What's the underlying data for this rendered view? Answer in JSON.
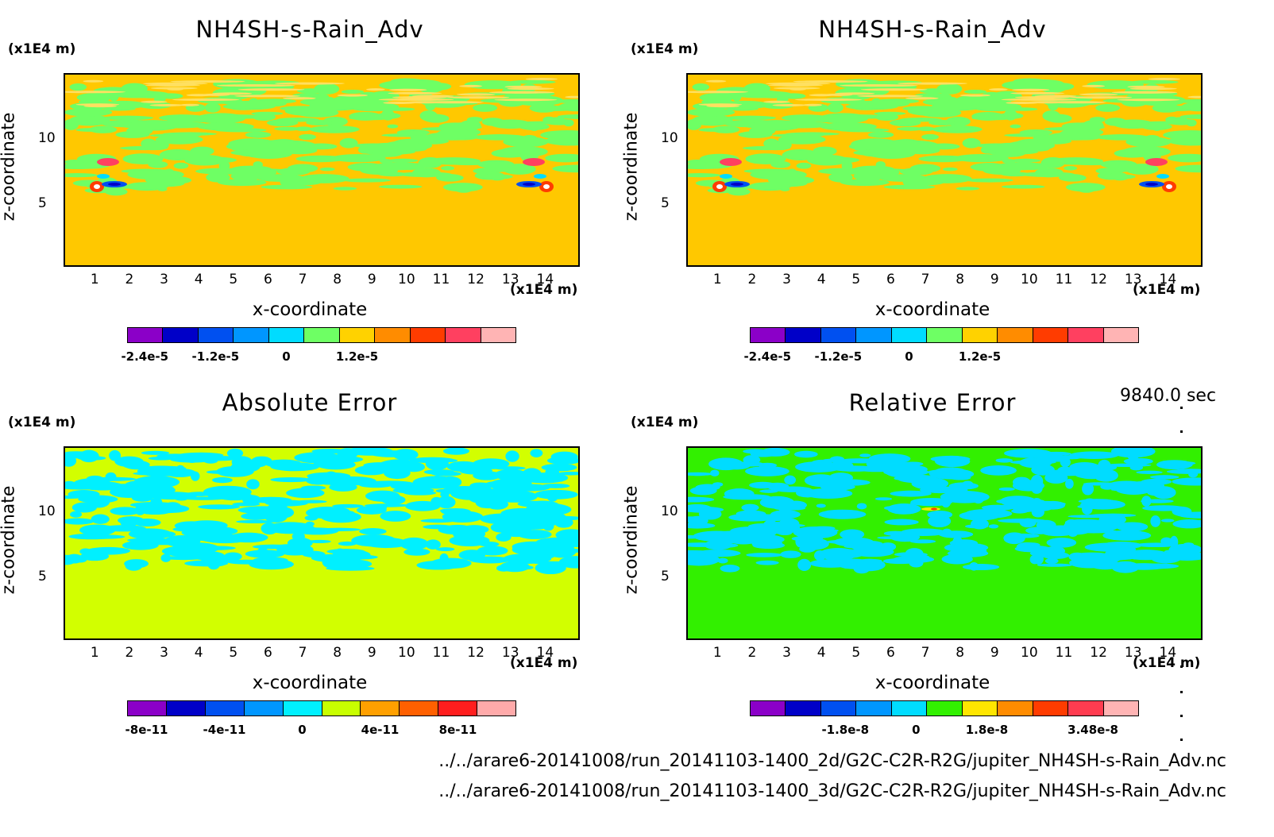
{
  "time_label": "9840.0 sec",
  "files": [
    "../../arare6-20141008/run_20141103-1400_2d/G2C-C2R-R2G/jupiter_NH4SH-s-Rain_Adv.nc",
    "../../arare6-20141008/run_20141103-1400_3d/G2C-C2R-R2G/jupiter_NH4SH-s-Rain_Adv.nc"
  ],
  "chart_data": [
    {
      "type": "heatmap",
      "title": "NH4SH-s-Rain_Adv",
      "xlabel": "x-coordinate",
      "ylabel": "z-coordinate",
      "x_unit": "(x1E4 m)",
      "y_unit": "(x1E4 m)",
      "xticks": [
        "1",
        "2",
        "3",
        "4",
        "5",
        "6",
        "7",
        "8",
        "9",
        "10",
        "11",
        "12",
        "13",
        "14"
      ],
      "yticks": [
        "5",
        "10"
      ],
      "xlim": [
        0.1,
        15
      ],
      "ylim": [
        0.1,
        15
      ],
      "colorbar": {
        "colors": [
          "#8b00c8",
          "#0000c8",
          "#0050f0",
          "#0096ff",
          "#00dcff",
          "#6eff64",
          "#ffd200",
          "#ff8c00",
          "#ff3c00",
          "#ff4060",
          "#ffb4b4"
        ],
        "tick_labels": [
          "-2.4e-5",
          "-1.2e-5",
          "0",
          "1.2e-5"
        ],
        "tick_values": [
          -2.4e-05,
          -1.2e-05,
          0,
          1.2e-05
        ]
      },
      "background_color": "#ffc800"
    },
    {
      "type": "heatmap",
      "title": "NH4SH-s-Rain_Adv",
      "xlabel": "x-coordinate",
      "ylabel": "z-coordinate",
      "x_unit": "(x1E4 m)",
      "y_unit": "(x1E4 m)",
      "xticks": [
        "1",
        "2",
        "3",
        "4",
        "5",
        "6",
        "7",
        "8",
        "9",
        "10",
        "11",
        "12",
        "13",
        "14"
      ],
      "yticks": [
        "5",
        "10"
      ],
      "xlim": [
        0.1,
        15
      ],
      "ylim": [
        0.1,
        15
      ],
      "colorbar": {
        "colors": [
          "#8b00c8",
          "#0000c8",
          "#0050f0",
          "#0096ff",
          "#00dcff",
          "#6eff64",
          "#ffd200",
          "#ff8c00",
          "#ff3c00",
          "#ff4060",
          "#ffb4b4"
        ],
        "tick_labels": [
          "-2.4e-5",
          "-1.2e-5",
          "0",
          "1.2e-5"
        ],
        "tick_values": [
          -2.4e-05,
          -1.2e-05,
          0,
          1.2e-05
        ]
      },
      "background_color": "#ffc800"
    },
    {
      "type": "heatmap",
      "title": "Absolute Error",
      "xlabel": "x-coordinate",
      "ylabel": "z-coordinate",
      "x_unit": "(x1E4 m)",
      "y_unit": "(x1E4 m)",
      "xticks": [
        "1",
        "2",
        "3",
        "4",
        "5",
        "6",
        "7",
        "8",
        "9",
        "10",
        "11",
        "12",
        "13",
        "14"
      ],
      "yticks": [
        "5",
        "10"
      ],
      "xlim": [
        0.1,
        15
      ],
      "ylim": [
        0.1,
        15
      ],
      "colorbar": {
        "colors": [
          "#8b00c8",
          "#0000c8",
          "#0050f0",
          "#0096ff",
          "#00f0ff",
          "#c8ff00",
          "#ffa000",
          "#ff6000",
          "#ff1e1e",
          "#ffaaaa"
        ],
        "tick_labels": [
          "-8e-11",
          "-4e-11",
          "0",
          "4e-11",
          "8e-11"
        ],
        "tick_values": [
          -8e-11,
          -4e-11,
          0,
          4e-11,
          8e-11
        ]
      },
      "background_color": "#d2ff00"
    },
    {
      "type": "heatmap",
      "title": "Relative Error",
      "xlabel": "x-coordinate",
      "ylabel": "z-coordinate",
      "x_unit": "(x1E4 m)",
      "y_unit": "(x1E4 m)",
      "xticks": [
        "1",
        "2",
        "3",
        "4",
        "5",
        "6",
        "7",
        "8",
        "9",
        "10",
        "11",
        "12",
        "13",
        "14"
      ],
      "yticks": [
        "5",
        "10"
      ],
      "xlim": [
        0.1,
        15
      ],
      "ylim": [
        0.1,
        15
      ],
      "colorbar": {
        "colors": [
          "#8b00c8",
          "#0000c8",
          "#0050f0",
          "#0096ff",
          "#00dcff",
          "#32f000",
          "#ffe600",
          "#ff8c00",
          "#ff3c00",
          "#ff3c50",
          "#ffb4b4"
        ],
        "tick_labels": [
          "-1.8e-8",
          "0",
          "1.8e-8",
          "3.48e-8"
        ],
        "tick_values": [
          -1.8e-08,
          0,
          1.8e-08,
          3.48e-08
        ]
      },
      "background_color": "#32f000"
    }
  ]
}
